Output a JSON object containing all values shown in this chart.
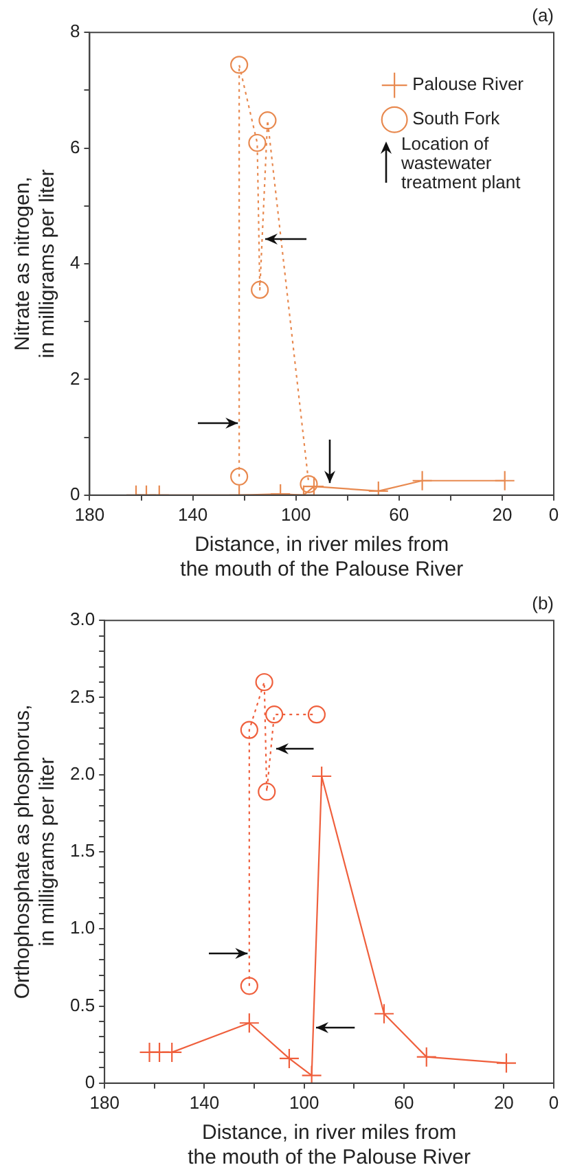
{
  "chart_data": [
    {
      "type": "line",
      "title": "(a)",
      "xlabel": "Distance, in river miles from\nthe mouth of the Palouse River",
      "ylabel": "Nitrate as nitrogen,\nin milligrams per liter",
      "annotations": [
        "Location of wastewater treatment plant"
      ],
      "xlim": [
        180,
        0
      ],
      "ylim": [
        0,
        8
      ],
      "xticks": [
        180,
        {
          "value": 160,
          "label": null
        },
        140,
        {
          "value": 120,
          "label": null
        },
        100,
        {
          "value": 80,
          "label": null
        },
        60,
        {
          "value": 40,
          "label": null
        },
        20,
        0
      ],
      "yticks": [
        0,
        {
          "value": 1,
          "label": null
        },
        2,
        {
          "value": 3,
          "label": null
        },
        4,
        {
          "value": 5,
          "label": null
        },
        6,
        {
          "value": 7,
          "label": null
        },
        8
      ],
      "legend": "top right",
      "series": [
        {
          "name": "Palouse River",
          "color": "#e8894f",
          "marker": "cross",
          "line_style": "solid",
          "x": [
            162,
            158,
            153,
            122,
            106,
            97,
            93,
            68,
            51,
            19
          ],
          "values": [
            0,
            0,
            0,
            0,
            0.02,
            0,
            0.15,
            0.07,
            0.25,
            0.25
          ]
        },
        {
          "name": "South Fork",
          "color": "#e8894f",
          "marker": "circle",
          "line_style": "dotted",
          "x": [
            122,
            122,
            115,
            114,
            111,
            95
          ],
          "values": [
            0.32,
            7.44,
            6.09,
            3.55,
            6.48,
            0.19
          ]
        }
      ]
    },
    {
      "type": "line",
      "title": "(b)",
      "xlabel": "Distance, in river miles from\nthe mouth of the Palouse River",
      "ylabel": "Orthophosphate as phosphorus,\nin milligrams per liter",
      "xlim": [
        180,
        0
      ],
      "ylim": [
        0,
        3
      ],
      "xticks": [
        180,
        {
          "value": 160,
          "label": null
        },
        140,
        {
          "value": 120,
          "label": null
        },
        100,
        {
          "value": 80,
          "label": null
        },
        60,
        {
          "value": 40,
          "label": null
        },
        20,
        0
      ],
      "yticks": [
        0,
        {
          "value": 0.1,
          "label": null
        },
        {
          "value": 0.2,
          "label": null
        },
        {
          "value": 0.3,
          "label": null
        },
        {
          "value": 0.4,
          "label": null
        },
        0.5,
        {
          "value": 0.6,
          "label": null
        },
        {
          "value": 0.7,
          "label": null
        },
        {
          "value": 0.8,
          "label": null
        },
        {
          "value": 0.9,
          "label": null
        },
        {
          "value": 1,
          "label": "1.0"
        },
        {
          "value": 1.1,
          "label": null
        },
        {
          "value": 1.2,
          "label": null
        },
        {
          "value": 1.3,
          "label": null
        },
        {
          "value": 1.4,
          "label": null
        },
        1.5,
        {
          "value": 1.6,
          "label": null
        },
        {
          "value": 1.7,
          "label": null
        },
        {
          "value": 1.8,
          "label": null
        },
        {
          "value": 1.9,
          "label": null
        },
        {
          "value": 2,
          "label": "2.0"
        },
        {
          "value": 2.1,
          "label": null
        },
        {
          "value": 2.2,
          "label": null
        },
        {
          "value": 2.3,
          "label": null
        },
        {
          "value": 2.4,
          "label": null
        },
        2.5,
        {
          "value": 2.6,
          "label": null
        },
        {
          "value": 2.7,
          "label": null
        },
        {
          "value": 2.8,
          "label": null
        },
        {
          "value": 2.9,
          "label": null
        },
        {
          "value": 3,
          "label": "3.0"
        }
      ],
      "series": [
        {
          "color": "#ef5f3c",
          "marker": "cross",
          "line_style": "solid",
          "x": [
            162,
            158,
            153,
            122,
            106,
            97,
            93,
            68,
            51,
            19
          ],
          "values": [
            0.2,
            0.2,
            0.2,
            0.39,
            0.16,
            0.05,
            1.99,
            0.45,
            0.17,
            0.13
          ]
        },
        {
          "color": "#ef5f3c",
          "marker": "circle",
          "line_style": "dotted",
          "x": [
            122,
            122,
            116,
            115,
            112,
            95
          ],
          "values": [
            0.63,
            2.29,
            2.6,
            1.89,
            2.39,
            2.39
          ]
        }
      ]
    }
  ]
}
